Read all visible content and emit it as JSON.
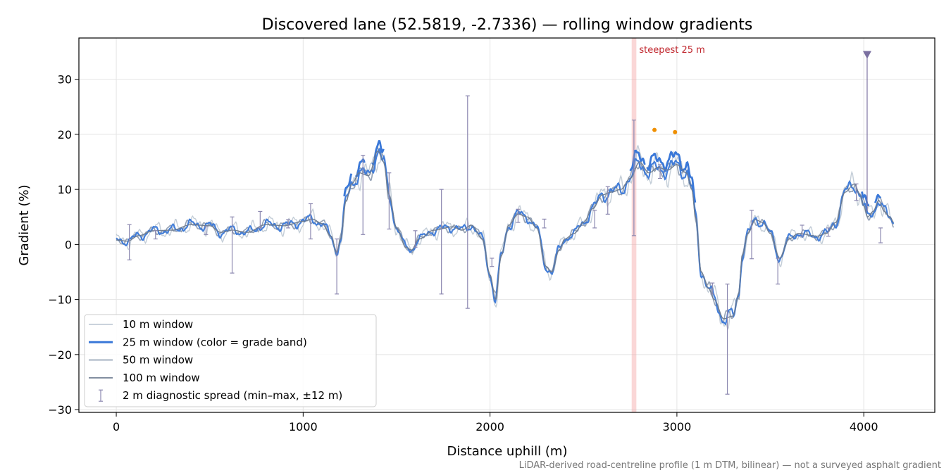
{
  "chart_data": {
    "type": "line",
    "title": "Discovered lane (52.5819, -2.7336) — rolling window gradients",
    "xlabel": "Distance uphill (m)",
    "ylabel": "Gradient (%)",
    "xlim": [
      -200,
      4380
    ],
    "ylim": [
      -30.5,
      37.5
    ],
    "x_ticks": [
      0,
      1000,
      2000,
      3000,
      4000
    ],
    "x_tick_labels": [
      "0",
      "1000",
      "2000",
      "3000",
      "4000"
    ],
    "y_ticks": [
      -30,
      -20,
      -10,
      0,
      10,
      20,
      30
    ],
    "y_tick_labels": [
      "−30",
      "−20",
      "−10",
      "0",
      "10",
      "20",
      "30"
    ],
    "grid": true,
    "legend_position": "lower-left",
    "profile_anchors": [
      [
        0,
        0.8
      ],
      [
        60,
        0.6
      ],
      [
        120,
        1.6
      ],
      [
        200,
        2.5
      ],
      [
        300,
        2.6
      ],
      [
        400,
        3.6
      ],
      [
        500,
        3.4
      ],
      [
        560,
        2.2
      ],
      [
        620,
        2.6
      ],
      [
        700,
        2.2
      ],
      [
        800,
        3.6
      ],
      [
        900,
        3.4
      ],
      [
        1000,
        4.2
      ],
      [
        1050,
        4.6
      ],
      [
        1100,
        3.8
      ],
      [
        1150,
        1.5
      ],
      [
        1180,
        -1.5
      ],
      [
        1200,
        1.0
      ],
      [
        1230,
        8.0
      ],
      [
        1260,
        11.0
      ],
      [
        1300,
        13.0
      ],
      [
        1350,
        12.5
      ],
      [
        1400,
        17.0
      ],
      [
        1430,
        15.0
      ],
      [
        1460,
        9.0
      ],
      [
        1500,
        3.0
      ],
      [
        1550,
        -0.5
      ],
      [
        1580,
        -1.0
      ],
      [
        1620,
        1.0
      ],
      [
        1700,
        2.6
      ],
      [
        1800,
        3.2
      ],
      [
        1850,
        2.6
      ],
      [
        1900,
        3.5
      ],
      [
        1960,
        1.0
      ],
      [
        2000,
        -5.5
      ],
      [
        2030,
        -10.0
      ],
      [
        2060,
        -2.0
      ],
      [
        2100,
        3.5
      ],
      [
        2150,
        5.5
      ],
      [
        2200,
        5.0
      ],
      [
        2250,
        3.0
      ],
      [
        2300,
        -4.0
      ],
      [
        2330,
        -5.0
      ],
      [
        2370,
        -1.0
      ],
      [
        2400,
        1.0
      ],
      [
        2450,
        2.0
      ],
      [
        2500,
        4.0
      ],
      [
        2550,
        6.5
      ],
      [
        2600,
        9.0
      ],
      [
        2650,
        9.5
      ],
      [
        2700,
        10.0
      ],
      [
        2750,
        12.0
      ],
      [
        2800,
        15.0
      ],
      [
        2850,
        13.0
      ],
      [
        2900,
        14.0
      ],
      [
        2950,
        13.5
      ],
      [
        3000,
        14.5
      ],
      [
        3050,
        13.0
      ],
      [
        3080,
        10.0
      ],
      [
        3100,
        5.0
      ],
      [
        3130,
        -5.0
      ],
      [
        3170,
        -8.0
      ],
      [
        3200,
        -10.0
      ],
      [
        3250,
        -13.5
      ],
      [
        3300,
        -13.0
      ],
      [
        3330,
        -9.0
      ],
      [
        3350,
        -2.0
      ],
      [
        3380,
        2.0
      ],
      [
        3420,
        4.5
      ],
      [
        3460,
        4.0
      ],
      [
        3500,
        2.0
      ],
      [
        3550,
        -2.5
      ],
      [
        3600,
        1.0
      ],
      [
        3650,
        2.0
      ],
      [
        3750,
        1.5
      ],
      [
        3800,
        2.0
      ],
      [
        3850,
        4.0
      ],
      [
        3900,
        9.5
      ],
      [
        3950,
        11.0
      ],
      [
        3980,
        9.0
      ],
      [
        4000,
        7.0
      ],
      [
        4020,
        5.0
      ],
      [
        4050,
        6.0
      ],
      [
        4080,
        8.0
      ],
      [
        4110,
        6.0
      ],
      [
        4140,
        5.0
      ],
      [
        4160,
        4.0
      ]
    ],
    "series": [
      {
        "name": "10 m window",
        "color": "#b8c4d0",
        "noise": 1.6,
        "smooth_weight": 0.4
      },
      {
        "name": "25 m window (color = grade band)",
        "color": "#3a78d8",
        "noise": 0.9,
        "smooth_weight": 0.6
      },
      {
        "name": "50 m window",
        "color": "#8e9cb0",
        "noise": 0.8,
        "smooth_weight": 0.7
      },
      {
        "name": "100 m window",
        "color": "#6c7a8e",
        "noise": 0.0,
        "smooth_weight": 1.0
      }
    ],
    "steep_25m_segments": [
      [
        1220,
        1260
      ],
      [
        1280,
        1330
      ],
      [
        1370,
        1430
      ],
      [
        2750,
        2830
      ],
      [
        2840,
        3100
      ],
      [
        3990,
        4030
      ],
      [
        4060,
        4090
      ]
    ],
    "spike_peaks": [
      {
        "x": 2880,
        "y": 20.8
      },
      {
        "x": 2990,
        "y": 20.4
      }
    ],
    "diagnostic_spread": {
      "name": "2 m diagnostic spread (min–max, ±12 m)",
      "color": "#8c88b0",
      "points": [
        {
          "x": 70,
          "low": -2.8,
          "high": 3.6
        },
        {
          "x": 210,
          "low": 1.0,
          "high": 2.5
        },
        {
          "x": 480,
          "low": 1.8,
          "high": 3.2
        },
        {
          "x": 620,
          "low": -5.2,
          "high": 5.0
        },
        {
          "x": 770,
          "low": 3.0,
          "high": 6.0
        },
        {
          "x": 920,
          "low": 3.0,
          "high": 4.5
        },
        {
          "x": 1040,
          "low": 1.0,
          "high": 7.4
        },
        {
          "x": 1180,
          "low": -9.0,
          "high": 1.0
        },
        {
          "x": 1320,
          "low": 1.8,
          "high": 16.2
        },
        {
          "x": 1460,
          "low": 2.8,
          "high": 13.0
        },
        {
          "x": 1600,
          "low": -0.5,
          "high": 2.5
        },
        {
          "x": 1740,
          "low": -9.0,
          "high": 10.0
        },
        {
          "x": 1880,
          "low": -11.6,
          "high": 27.0
        },
        {
          "x": 2010,
          "low": -4.0,
          "high": -2.5
        },
        {
          "x": 2150,
          "low": 4.0,
          "high": 6.4
        },
        {
          "x": 2290,
          "low": 3.0,
          "high": 4.6
        },
        {
          "x": 2560,
          "low": 3.0,
          "high": 6.2
        },
        {
          "x": 2630,
          "low": 5.5,
          "high": 10.5
        },
        {
          "x": 2770,
          "low": 1.6,
          "high": 22.6
        },
        {
          "x": 2910,
          "low": 12.0,
          "high": 14.5
        },
        {
          "x": 3190,
          "low": -9.0,
          "high": -7.0
        },
        {
          "x": 3270,
          "low": -27.2,
          "high": -7.2
        },
        {
          "x": 3400,
          "low": -2.6,
          "high": 6.2
        },
        {
          "x": 3540,
          "low": -7.2,
          "high": -2.5
        },
        {
          "x": 3670,
          "low": 1.5,
          "high": 3.5
        },
        {
          "x": 3810,
          "low": 1.5,
          "high": 3.0
        },
        {
          "x": 3960,
          "low": 8.0,
          "high": 11.0
        },
        {
          "x": 4090,
          "low": 0.3,
          "high": 3.0
        }
      ]
    },
    "steepest_band": {
      "x_start": 2758,
      "x_end": 2783,
      "color": "#f4a6a6",
      "label": "steepest 25 m"
    },
    "spike_marker": {
      "x": 4018,
      "y": 34.5,
      "stem_low": 6.0,
      "color": "#7a6fa0"
    },
    "colors": {
      "steep_peak": "#ef8f00",
      "band_label": "#c0262d"
    }
  },
  "footnote": "LiDAR-derived road-centreline profile (1 m DTM, bilinear) — not a surveyed asphalt gradient"
}
